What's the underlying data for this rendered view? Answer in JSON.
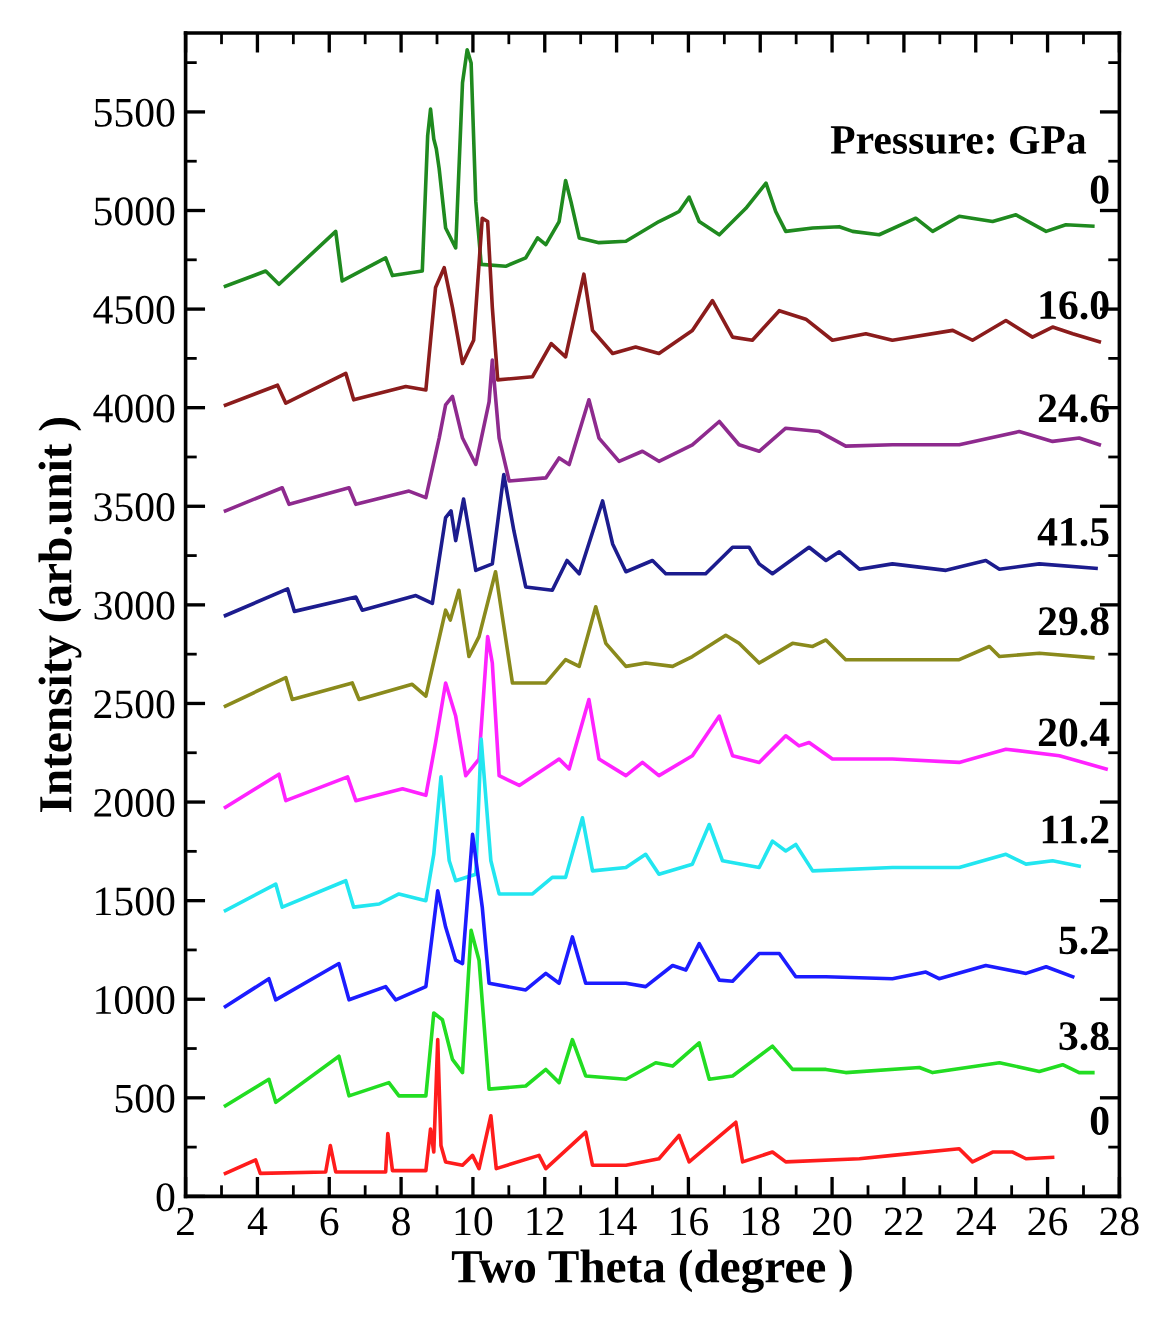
{
  "chart_data": {
    "type": "line",
    "xlabel": "Two Theta (degree )",
    "ylabel": "Intensity (arb.unit )",
    "annotations": [
      "Pressure: GPa"
    ],
    "xlim": [
      2,
      28
    ],
    "ylim": [
      0,
      5900
    ],
    "xticks": [
      2,
      4,
      6,
      8,
      10,
      12,
      14,
      16,
      18,
      20,
      22,
      24,
      26,
      28
    ],
    "yticks": [
      0,
      500,
      1000,
      1500,
      2000,
      2500,
      3000,
      3500,
      4000,
      4500,
      5000,
      5500
    ],
    "grid": false,
    "legend": false,
    "marker": "none",
    "line_style": "solid",
    "series": [
      {
        "name": "0",
        "color": "#1f8a1f",
        "x": [
          3.11,
          4.23,
          4.6,
          6.18,
          6.36,
          7.57,
          7.76,
          8.59,
          8.74,
          8.82,
          8.91,
          8.98,
          9.06,
          9.24,
          9.52,
          9.71,
          9.84,
          9.95,
          10.08,
          10.23,
          10.91,
          11.47,
          11.8,
          12.03,
          12.4,
          12.58,
          12.73,
          12.96,
          13.51,
          14.26,
          15.18,
          15.56,
          15.74,
          16.02,
          16.3,
          16.86,
          17.6,
          18.16,
          18.43,
          18.71,
          19.46,
          20.2,
          20.57,
          21.31,
          22.33,
          22.8,
          23.54,
          24.47,
          25.12,
          25.96,
          26.51,
          27.26
        ],
        "values": [
          4616,
          4693,
          4626,
          4894,
          4643,
          4760,
          4670,
          4693,
          5380,
          5514,
          5363,
          5313,
          5212,
          4911,
          4810,
          5648,
          5815,
          5748,
          5045,
          4727,
          4717,
          4760,
          4861,
          4827,
          4944,
          5152,
          5045,
          4861,
          4837,
          4844,
          4944,
          4978,
          4995,
          5068,
          4944,
          4877,
          5011,
          5139,
          4995,
          4894,
          4911,
          4918,
          4894,
          4877,
          4961,
          4894,
          4971,
          4944,
          4978,
          4894,
          4928,
          4921
        ]
      },
      {
        "name": "16.0",
        "color": "#8b1c1c",
        "x": [
          3.11,
          4.56,
          4.79,
          6.46,
          6.68,
          8.13,
          8.69,
          8.96,
          9.2,
          9.43,
          9.71,
          10.02,
          10.26,
          10.41,
          10.54,
          10.69,
          11.66,
          12.18,
          12.58,
          13.09,
          13.33,
          13.89,
          14.53,
          15.18,
          16.11,
          16.67,
          17.23,
          17.78,
          18.53,
          19.27,
          20.01,
          20.94,
          21.68,
          23.36,
          23.91,
          24.84,
          25.58,
          26.14,
          26.7,
          27.44
        ],
        "values": [
          4013,
          4114,
          4023,
          4174,
          4040,
          4107,
          4090,
          4610,
          4710,
          4509,
          4224,
          4342,
          4961,
          4944,
          4509,
          4141,
          4157,
          4325,
          4258,
          4677,
          4392,
          4275,
          4308,
          4275,
          4392,
          4543,
          4358,
          4342,
          4492,
          4449,
          4342,
          4375,
          4342,
          4392,
          4342,
          4442,
          4358,
          4409,
          4375,
          4335
        ]
      },
      {
        "name": "24.6",
        "color": "#8e2a8e",
        "x": [
          3.11,
          4.69,
          4.88,
          6.55,
          6.74,
          8.22,
          8.69,
          9.06,
          9.24,
          9.43,
          9.71,
          10.08,
          10.45,
          10.54,
          10.73,
          11.01,
          12.03,
          12.4,
          12.68,
          13.23,
          13.51,
          14.07,
          14.72,
          15.18,
          16.11,
          16.86,
          17.41,
          17.97,
          18.71,
          19.64,
          20.38,
          21.68,
          23.54,
          25.21,
          26.14,
          26.88,
          27.44
        ],
        "values": [
          3477,
          3594,
          3510,
          3594,
          3510,
          3577,
          3544,
          3846,
          4014,
          4057,
          3846,
          3712,
          4030,
          4241,
          3846,
          3628,
          3644,
          3745,
          3712,
          4040,
          3846,
          3728,
          3779,
          3728,
          3812,
          3930,
          3812,
          3779,
          3896,
          3879,
          3805,
          3812,
          3812,
          3879,
          3829,
          3846,
          3812
        ]
      },
      {
        "name": "41.5",
        "color": "#1c1c8e",
        "x": [
          3.11,
          4.84,
          5.03,
          6.74,
          6.92,
          8.41,
          8.87,
          9.24,
          9.39,
          9.52,
          9.74,
          10.08,
          10.54,
          10.86,
          11.14,
          11.47,
          12.21,
          12.62,
          12.96,
          13.61,
          13.89,
          14.26,
          15.0,
          15.37,
          16.48,
          17.23,
          17.69,
          17.97,
          18.34,
          19.36,
          19.83,
          20.2,
          20.76,
          21.68,
          23.17,
          24.28,
          24.66,
          25.77,
          27.35
        ],
        "values": [
          2946,
          3081,
          2967,
          3040,
          2973,
          3047,
          3007,
          3443,
          3477,
          3326,
          3537,
          3175,
          3208,
          3661,
          3376,
          3091,
          3074,
          3225,
          3158,
          3527,
          3309,
          3168,
          3225,
          3158,
          3158,
          3292,
          3292,
          3208,
          3158,
          3292,
          3225,
          3269,
          3181,
          3208,
          3175,
          3225,
          3181,
          3208,
          3185
        ]
      },
      {
        "name": "29.8",
        "color": "#8a8a1c",
        "x": [
          3.11,
          4.79,
          4.97,
          6.64,
          6.83,
          8.31,
          8.69,
          9.24,
          9.37,
          9.61,
          9.89,
          10.17,
          10.63,
          10.82,
          11.1,
          12.03,
          12.58,
          12.96,
          13.42,
          13.7,
          14.26,
          14.81,
          15.56,
          16.11,
          17.04,
          17.41,
          17.97,
          18.9,
          19.46,
          19.83,
          20.38,
          21.68,
          23.54,
          24.38,
          24.66,
          25.77,
          27.26
        ],
        "values": [
          2487,
          2631,
          2520,
          2604,
          2520,
          2597,
          2537,
          2973,
          2923,
          3074,
          2738,
          2839,
          3168,
          2940,
          2604,
          2604,
          2722,
          2688,
          2990,
          2805,
          2688,
          2705,
          2688,
          2738,
          2846,
          2805,
          2705,
          2805,
          2789,
          2822,
          2722,
          2722,
          2722,
          2789,
          2738,
          2755,
          2732
        ]
      },
      {
        "name": "20.4",
        "color": "#ff22ff",
        "x": [
          3.11,
          4.6,
          4.79,
          6.51,
          6.74,
          8.04,
          8.69,
          8.96,
          9.24,
          9.52,
          9.8,
          10.17,
          10.41,
          10.54,
          10.73,
          11.29,
          12.4,
          12.68,
          13.23,
          13.51,
          14.26,
          14.72,
          15.18,
          16.11,
          16.86,
          17.23,
          17.97,
          18.71,
          19.08,
          19.36,
          20.01,
          21.68,
          23.54,
          24.84,
          26.33,
          27.63
        ],
        "values": [
          1973,
          2141,
          2007,
          2128,
          2007,
          2067,
          2034,
          2302,
          2604,
          2436,
          2134,
          2218,
          2839,
          2705,
          2134,
          2084,
          2218,
          2168,
          2520,
          2218,
          2134,
          2201,
          2134,
          2235,
          2436,
          2235,
          2201,
          2336,
          2285,
          2302,
          2218,
          2218,
          2201,
          2268,
          2235,
          2168
        ]
      },
      {
        "name": "11.2",
        "color": "#22e6f0",
        "x": [
          3.11,
          4.51,
          4.69,
          6.46,
          6.68,
          7.39,
          7.94,
          8.69,
          8.91,
          9.11,
          9.34,
          9.52,
          10.08,
          10.23,
          10.5,
          10.73,
          11.66,
          12.21,
          12.58,
          13.05,
          13.33,
          14.26,
          14.81,
          15.18,
          16.11,
          16.58,
          16.95,
          17.97,
          18.34,
          18.71,
          18.99,
          19.46,
          21.68,
          23.54,
          24.84,
          25.4,
          26.14,
          26.88
        ],
        "values": [
          1450,
          1584,
          1467,
          1601,
          1467,
          1483,
          1534,
          1500,
          1735,
          2128,
          1702,
          1601,
          1634,
          2319,
          1702,
          1534,
          1534,
          1618,
          1618,
          1920,
          1651,
          1668,
          1735,
          1634,
          1685,
          1886,
          1702,
          1668,
          1802,
          1752,
          1785,
          1651,
          1668,
          1668,
          1735,
          1685,
          1702,
          1675
        ]
      },
      {
        "name": "5.2",
        "color": "#1c1cff",
        "x": [
          3.11,
          4.32,
          4.51,
          6.27,
          6.55,
          7.57,
          7.85,
          8.69,
          9.02,
          9.24,
          9.52,
          9.71,
          9.99,
          10.26,
          10.45,
          11.47,
          12.03,
          12.4,
          12.77,
          13.14,
          14.26,
          14.81,
          15.56,
          15.93,
          16.3,
          16.86,
          17.23,
          17.97,
          18.53,
          18.99,
          19.83,
          21.68,
          22.61,
          22.98,
          24.28,
          25.4,
          25.96,
          26.7
        ],
        "values": [
          963,
          1104,
          997,
          1181,
          997,
          1064,
          997,
          1064,
          1550,
          1366,
          1198,
          1181,
          1836,
          1467,
          1081,
          1047,
          1131,
          1081,
          1316,
          1081,
          1081,
          1064,
          1171,
          1148,
          1282,
          1097,
          1091,
          1232,
          1232,
          1114,
          1114,
          1104,
          1138,
          1104,
          1171,
          1131,
          1165,
          1114
        ]
      },
      {
        "name": "3.8",
        "color": "#22dd22",
        "x": [
          3.11,
          4.32,
          4.51,
          6.27,
          6.55,
          7.66,
          7.94,
          8.69,
          8.91,
          9.15,
          9.43,
          9.71,
          9.95,
          10.17,
          10.45,
          11.47,
          12.03,
          12.4,
          12.77,
          13.14,
          14.26,
          15.09,
          15.56,
          16.3,
          16.58,
          17.23,
          18.34,
          18.9,
          19.83,
          20.38,
          22.43,
          22.8,
          24.66,
          25.77,
          26.42,
          26.88,
          27.26
        ],
        "values": [
          460,
          594,
          477,
          711,
          510,
          577,
          510,
          510,
          930,
          896,
          695,
          628,
          1349,
          1198,
          544,
          560,
          644,
          577,
          795,
          611,
          594,
          678,
          661,
          779,
          594,
          611,
          762,
          644,
          644,
          628,
          654,
          628,
          678,
          634,
          668,
          628,
          628
        ]
      },
      {
        "name": "0",
        "color": "#ff1c1c",
        "x": [
          3.11,
          3.95,
          4.08,
          5.9,
          6.03,
          6.18,
          7.57,
          7.63,
          7.76,
          8.69,
          8.82,
          8.91,
          9.02,
          9.11,
          9.24,
          9.71,
          9.99,
          10.17,
          10.5,
          10.65,
          11.84,
          12.03,
          13.14,
          13.33,
          14.26,
          15.18,
          15.74,
          16.02,
          17.32,
          17.51,
          18.34,
          18.71,
          20.76,
          21.68,
          23.54,
          23.91,
          24.47,
          25.03,
          25.4,
          26.14
        ],
        "values": [
          117,
          185,
          117,
          124,
          258,
          124,
          124,
          319,
          131,
          131,
          342,
          225,
          795,
          258,
          175,
          158,
          208,
          141,
          409,
          141,
          208,
          141,
          326,
          158,
          158,
          191,
          309,
          175,
          376,
          175,
          225,
          175,
          191,
          208,
          242,
          175,
          225,
          225,
          191,
          198
        ]
      }
    ]
  }
}
